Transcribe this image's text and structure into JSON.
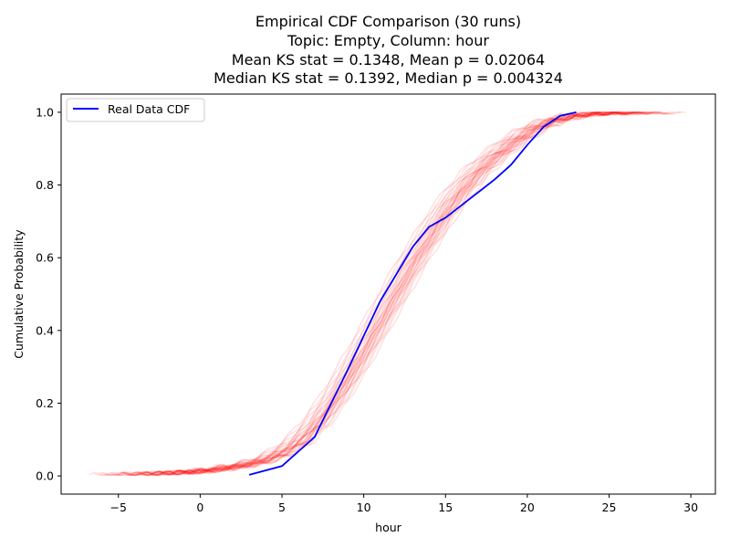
{
  "chart_data": {
    "type": "line",
    "title_lines": [
      "Empirical CDF Comparison (30 runs)",
      "Topic: Empty, Column: hour",
      "Mean KS stat = 0.1348, Mean p = 0.02064",
      "Median KS stat = 0.1392, Median p = 0.004324"
    ],
    "xlabel": "hour",
    "ylabel": "Cumulative Probability",
    "xlim": [
      -8.5,
      31.5
    ],
    "ylim": [
      -0.05,
      1.05
    ],
    "x_ticks": [
      {
        "value": -5,
        "label": "−5"
      },
      {
        "value": 0,
        "label": "0"
      },
      {
        "value": 5,
        "label": "5"
      },
      {
        "value": 10,
        "label": "10"
      },
      {
        "value": 15,
        "label": "15"
      },
      {
        "value": 20,
        "label": "20"
      },
      {
        "value": 25,
        "label": "25"
      },
      {
        "value": 30,
        "label": "30"
      }
    ],
    "y_ticks": [
      {
        "value": 0.0,
        "label": "0.0"
      },
      {
        "value": 0.2,
        "label": "0.2"
      },
      {
        "value": 0.4,
        "label": "0.4"
      },
      {
        "value": 0.6,
        "label": "0.6"
      },
      {
        "value": 0.8,
        "label": "0.8"
      },
      {
        "value": 1.0,
        "label": "1.0"
      }
    ],
    "grid": false,
    "legend": {
      "placement": "top-left",
      "entries": [
        {
          "label": "Real Data CDF",
          "color": "#0000ff"
        }
      ]
    },
    "real_series": {
      "name": "Real Data CDF",
      "color": "#0000ff",
      "x": [
        3,
        5,
        7,
        9,
        11,
        13,
        14,
        15,
        16,
        17,
        18,
        19,
        20,
        21,
        22,
        23
      ],
      "y": [
        0.003,
        0.027,
        0.107,
        0.29,
        0.48,
        0.63,
        0.685,
        0.71,
        0.745,
        0.78,
        0.815,
        0.855,
        0.91,
        0.96,
        0.99,
        1.0
      ]
    },
    "simulated_runs": {
      "count": 30,
      "color": "#ff0000",
      "opacity": 0.12,
      "median_x": [
        -7,
        -5,
        -3,
        -1,
        0,
        1,
        2,
        3,
        4,
        5,
        6,
        7,
        8,
        9,
        10,
        11,
        12,
        13,
        14,
        15,
        16,
        17,
        18,
        19,
        20,
        21,
        22,
        23,
        24,
        25,
        26,
        27,
        28,
        29
      ],
      "median_y": [
        0.003,
        0.004,
        0.006,
        0.01,
        0.013,
        0.018,
        0.025,
        0.033,
        0.045,
        0.065,
        0.095,
        0.14,
        0.2,
        0.27,
        0.35,
        0.43,
        0.51,
        0.59,
        0.66,
        0.73,
        0.79,
        0.84,
        0.88,
        0.915,
        0.945,
        0.968,
        0.982,
        0.991,
        0.996,
        0.998,
        0.999,
        1.0,
        1.0,
        1.0
      ],
      "run_offsets_x": [
        -1.0,
        -0.85,
        -0.7,
        -0.6,
        -0.5,
        -0.42,
        -0.35,
        -0.28,
        -0.2,
        -0.14,
        -0.08,
        -0.03,
        0.0,
        0.03,
        0.07,
        0.1,
        0.14,
        0.18,
        0.22,
        0.26,
        0.3,
        0.35,
        0.4,
        0.45,
        0.5,
        0.55,
        0.62,
        0.7,
        0.8,
        0.95
      ],
      "run_starts_x": [
        -6.8,
        -5.5,
        -4.5,
        -4,
        -3.5,
        -3,
        -6,
        -2.5,
        -5,
        -3.8,
        -2,
        -4.2,
        -6.5,
        -3.2,
        -1.5,
        -5.8,
        -2.8,
        -4.8,
        -1,
        -3.6,
        -2.2,
        -5.2,
        -0.5,
        -4.4,
        -2.6,
        -6.2,
        -1.8,
        -3.4,
        -0.8,
        -4.6
      ],
      "run_ends_x": [
        29.7,
        28,
        27,
        26.5,
        26,
        27.5,
        25.5,
        28.5,
        26.8,
        25,
        27.2,
        29,
        26.2,
        28.2,
        24.8,
        27.8,
        26.6,
        25.6,
        28.8,
        27,
        25.8,
        26.4,
        29.4,
        27.4,
        25.2,
        26.9,
        28.6,
        24.5,
        27.6,
        26.1
      ]
    }
  }
}
